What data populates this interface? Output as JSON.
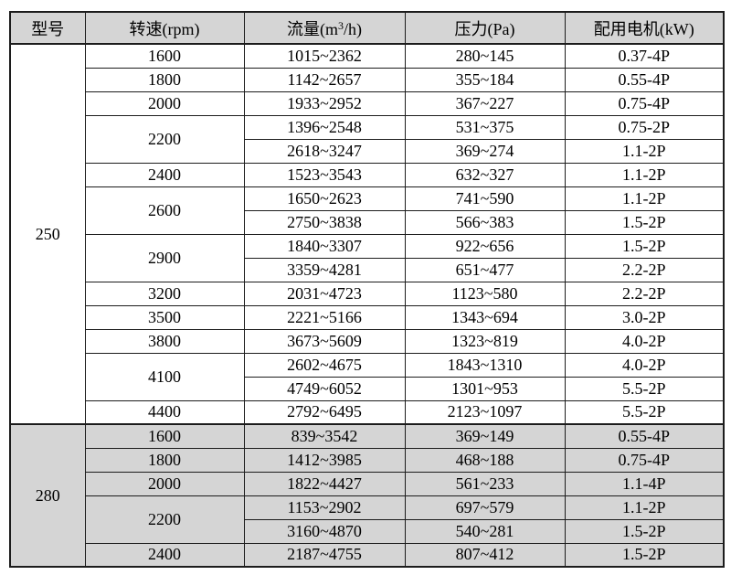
{
  "colors": {
    "border": "#1c1c1c",
    "header_bg": "#d5d5d5",
    "alt_section_bg": "#d5d5d5",
    "row_bg": "#ffffff"
  },
  "table": {
    "headers": {
      "model": "型号",
      "speed": "转速(rpm)",
      "flow_prefix": "流量(m",
      "flow_sup": "3",
      "flow_suffix": "/h)",
      "pressure": "压力(Pa)",
      "motor": "配用电机(kW)"
    },
    "groups": [
      {
        "model": "250",
        "shaded": false,
        "rows": [
          {
            "speed": "1600",
            "span": 1,
            "flow": "1015~2362",
            "pressure": "280~145",
            "motor": "0.37-4P"
          },
          {
            "speed": "1800",
            "span": 1,
            "flow": "1142~2657",
            "pressure": "355~184",
            "motor": "0.55-4P"
          },
          {
            "speed": "2000",
            "span": 1,
            "flow": "1933~2952",
            "pressure": "367~227",
            "motor": "0.75-4P"
          },
          {
            "speed": "2200",
            "span": 2,
            "flow": "1396~2548",
            "pressure": "531~375",
            "motor": "0.75-2P"
          },
          {
            "flow": "2618~3247",
            "pressure": "369~274",
            "motor": "1.1-2P"
          },
          {
            "speed": "2400",
            "span": 1,
            "flow": "1523~3543",
            "pressure": "632~327",
            "motor": "1.1-2P"
          },
          {
            "speed": "2600",
            "span": 2,
            "flow": "1650~2623",
            "pressure": "741~590",
            "motor": "1.1-2P"
          },
          {
            "flow": "2750~3838",
            "pressure": "566~383",
            "motor": "1.5-2P"
          },
          {
            "speed": "2900",
            "span": 2,
            "flow": "1840~3307",
            "pressure": "922~656",
            "motor": "1.5-2P"
          },
          {
            "flow": "3359~4281",
            "pressure": "651~477",
            "motor": "2.2-2P"
          },
          {
            "speed": "3200",
            "span": 1,
            "flow": "2031~4723",
            "pressure": "1123~580",
            "motor": "2.2-2P"
          },
          {
            "speed": "3500",
            "span": 1,
            "flow": "2221~5166",
            "pressure": "1343~694",
            "motor": "3.0-2P"
          },
          {
            "speed": "3800",
            "span": 1,
            "flow": "3673~5609",
            "pressure": "1323~819",
            "motor": "4.0-2P"
          },
          {
            "speed": "4100",
            "span": 2,
            "flow": "2602~4675",
            "pressure": "1843~1310",
            "motor": "4.0-2P"
          },
          {
            "flow": "4749~6052",
            "pressure": "1301~953",
            "motor": "5.5-2P"
          },
          {
            "speed": "4400",
            "span": 1,
            "flow": "2792~6495",
            "pressure": "2123~1097",
            "motor": "5.5-2P"
          }
        ]
      },
      {
        "model": "280",
        "shaded": true,
        "rows": [
          {
            "speed": "1600",
            "span": 1,
            "flow": "839~3542",
            "pressure": "369~149",
            "motor": "0.55-4P"
          },
          {
            "speed": "1800",
            "span": 1,
            "flow": "1412~3985",
            "pressure": "468~188",
            "motor": "0.75-4P"
          },
          {
            "speed": "2000",
            "span": 1,
            "flow": "1822~4427",
            "pressure": "561~233",
            "motor": "1.1-4P"
          },
          {
            "speed": "2200",
            "span": 2,
            "flow": "1153~2902",
            "pressure": "697~579",
            "motor": "1.1-2P"
          },
          {
            "flow": "3160~4870",
            "pressure": "540~281",
            "motor": "1.5-2P"
          },
          {
            "speed": "2400",
            "span": 1,
            "flow": "2187~4755",
            "pressure": "807~412",
            "motor": "1.5-2P"
          }
        ]
      }
    ]
  }
}
